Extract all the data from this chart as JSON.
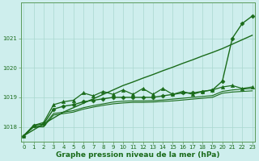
{
  "title": "Graphe pression niveau de la mer (hPa)",
  "x_labels": [
    "0",
    "1",
    "2",
    "3",
    "4",
    "5",
    "6",
    "7",
    "8",
    "9",
    "10",
    "11",
    "12",
    "13",
    "14",
    "15",
    "16",
    "17",
    "18",
    "19",
    "20",
    "21",
    "22",
    "23"
  ],
  "x_values": [
    0,
    1,
    2,
    3,
    4,
    5,
    6,
    7,
    8,
    9,
    10,
    11,
    12,
    13,
    14,
    15,
    16,
    17,
    18,
    19,
    20,
    21,
    22,
    23
  ],
  "series": [
    {
      "name": "straight_top",
      "y": [
        1017.7,
        1017.9,
        1018.1,
        1018.3,
        1018.5,
        1018.65,
        1018.8,
        1018.95,
        1019.1,
        1019.25,
        1019.4,
        1019.52,
        1019.65,
        1019.77,
        1019.9,
        1020.02,
        1020.15,
        1020.27,
        1020.4,
        1020.52,
        1020.65,
        1020.8,
        1020.95,
        1021.1
      ],
      "color": "#1a6b1a",
      "linewidth": 1.0,
      "marker": null,
      "zorder": 2
    },
    {
      "name": "diamond_line",
      "y": [
        1017.7,
        1018.05,
        1018.1,
        1018.6,
        1018.7,
        1018.75,
        1018.85,
        1018.9,
        1018.95,
        1019.0,
        1019.0,
        1019.0,
        1019.0,
        1019.0,
        1019.05,
        1019.1,
        1019.15,
        1019.15,
        1019.2,
        1019.25,
        1019.55,
        1021.0,
        1021.5,
        1021.75
      ],
      "color": "#1a6b1a",
      "linewidth": 1.0,
      "marker": "D",
      "markersize": 2.5,
      "zorder": 4
    },
    {
      "name": "zigzag_triangle",
      "y": [
        1017.7,
        1018.05,
        1018.15,
        1018.75,
        1018.85,
        1018.9,
        1019.15,
        1019.05,
        1019.2,
        1019.1,
        1019.25,
        1019.1,
        1019.3,
        1019.1,
        1019.3,
        1019.1,
        1019.2,
        1019.1,
        1019.2,
        1019.25,
        1019.35,
        1019.4,
        1019.3,
        1019.35
      ],
      "color": "#1a6b1a",
      "linewidth": 0.9,
      "marker": "^",
      "markersize": 3.0,
      "zorder": 5
    },
    {
      "name": "lower_line1",
      "y": [
        1017.7,
        1018.0,
        1018.05,
        1018.45,
        1018.5,
        1018.55,
        1018.65,
        1018.72,
        1018.78,
        1018.84,
        1018.87,
        1018.88,
        1018.88,
        1018.89,
        1018.91,
        1018.94,
        1018.97,
        1019.0,
        1019.03,
        1019.06,
        1019.2,
        1019.25,
        1019.28,
        1019.3
      ],
      "color": "#1a6b1a",
      "linewidth": 0.8,
      "marker": null,
      "zorder": 3
    },
    {
      "name": "lower_line2",
      "y": [
        1017.7,
        1018.0,
        1018.0,
        1018.4,
        1018.45,
        1018.5,
        1018.6,
        1018.67,
        1018.73,
        1018.78,
        1018.81,
        1018.83,
        1018.83,
        1018.84,
        1018.86,
        1018.88,
        1018.91,
        1018.94,
        1018.97,
        1019.0,
        1019.14,
        1019.18,
        1019.2,
        1019.22
      ],
      "color": "#1a6b1a",
      "linewidth": 0.8,
      "marker": null,
      "zorder": 3
    }
  ],
  "ylim": [
    1017.5,
    1022.2
  ],
  "yticks": [
    1018,
    1019,
    1020,
    1021
  ],
  "xlim": [
    -0.3,
    23.3
  ],
  "bg_color": "#ceeeed",
  "grid_color": "#aad8d0",
  "text_color": "#1a6b1a",
  "title_fontsize": 6.5,
  "tick_fontsize": 5.0,
  "spine_color": "#5a9a5a"
}
